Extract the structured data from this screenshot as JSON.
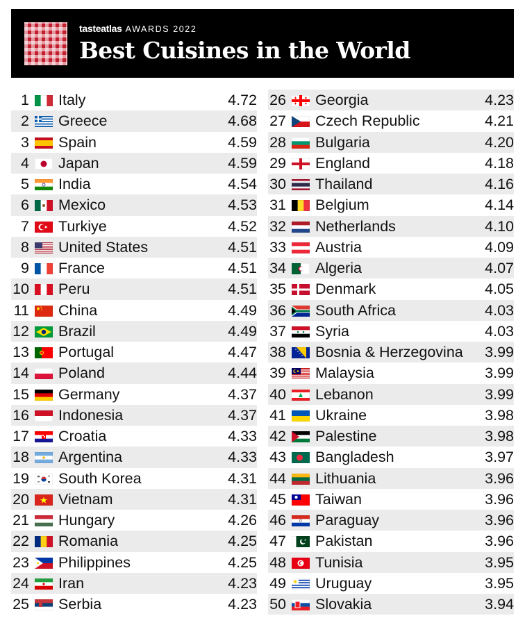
{
  "header": {
    "brand_name": "tasteatlas",
    "brand_suffix": "AWARDS 2022",
    "title": "Best Cuisines in the World",
    "logo": "red-white-checkered-square"
  },
  "colors": {
    "header_bg": "#000000",
    "logo_red": "#c41d2e",
    "row_shade": "#ebebeb",
    "text": "#111111"
  },
  "chart_data": {
    "type": "table",
    "title": "Best Cuisines in the World",
    "columns": [
      "rank",
      "flag",
      "country",
      "rating"
    ],
    "rows": [
      {
        "rank": 1,
        "country": "Italy",
        "score": "4.72",
        "flag": "it"
      },
      {
        "rank": 2,
        "country": "Greece",
        "score": "4.68",
        "flag": "gr"
      },
      {
        "rank": 3,
        "country": "Spain",
        "score": "4.59",
        "flag": "es"
      },
      {
        "rank": 4,
        "country": "Japan",
        "score": "4.59",
        "flag": "jp"
      },
      {
        "rank": 5,
        "country": "India",
        "score": "4.54",
        "flag": "in"
      },
      {
        "rank": 6,
        "country": "Mexico",
        "score": "4.53",
        "flag": "mx"
      },
      {
        "rank": 7,
        "country": "Turkiye",
        "score": "4.52",
        "flag": "tr"
      },
      {
        "rank": 8,
        "country": "United States",
        "score": "4.51",
        "flag": "us"
      },
      {
        "rank": 9,
        "country": "France",
        "score": "4.51",
        "flag": "fr"
      },
      {
        "rank": 10,
        "country": "Peru",
        "score": "4.51",
        "flag": "pe"
      },
      {
        "rank": 11,
        "country": "China",
        "score": "4.49",
        "flag": "cn"
      },
      {
        "rank": 12,
        "country": "Brazil",
        "score": "4.49",
        "flag": "br"
      },
      {
        "rank": 13,
        "country": "Portugal",
        "score": "4.47",
        "flag": "pt"
      },
      {
        "rank": 14,
        "country": "Poland",
        "score": "4.44",
        "flag": "pl"
      },
      {
        "rank": 15,
        "country": "Germany",
        "score": "4.37",
        "flag": "de"
      },
      {
        "rank": 16,
        "country": "Indonesia",
        "score": "4.37",
        "flag": "id"
      },
      {
        "rank": 17,
        "country": "Croatia",
        "score": "4.33",
        "flag": "hr"
      },
      {
        "rank": 18,
        "country": "Argentina",
        "score": "4.33",
        "flag": "ar"
      },
      {
        "rank": 19,
        "country": "South Korea",
        "score": "4.31",
        "flag": "kr"
      },
      {
        "rank": 20,
        "country": "Vietnam",
        "score": "4.31",
        "flag": "vn"
      },
      {
        "rank": 21,
        "country": "Hungary",
        "score": "4.26",
        "flag": "hu"
      },
      {
        "rank": 22,
        "country": "Romania",
        "score": "4.25",
        "flag": "ro"
      },
      {
        "rank": 23,
        "country": "Philippines",
        "score": "4.25",
        "flag": "ph"
      },
      {
        "rank": 24,
        "country": "Iran",
        "score": "4.23",
        "flag": "ir"
      },
      {
        "rank": 25,
        "country": "Serbia",
        "score": "4.23",
        "flag": "rs"
      },
      {
        "rank": 26,
        "country": "Georgia",
        "score": "4.23",
        "flag": "ge"
      },
      {
        "rank": 27,
        "country": "Czech Republic",
        "score": "4.21",
        "flag": "cz"
      },
      {
        "rank": 28,
        "country": "Bulgaria",
        "score": "4.20",
        "flag": "bg"
      },
      {
        "rank": 29,
        "country": "England",
        "score": "4.18",
        "flag": "en"
      },
      {
        "rank": 30,
        "country": "Thailand",
        "score": "4.16",
        "flag": "th"
      },
      {
        "rank": 31,
        "country": "Belgium",
        "score": "4.14",
        "flag": "be"
      },
      {
        "rank": 32,
        "country": "Netherlands",
        "score": "4.10",
        "flag": "nl"
      },
      {
        "rank": 33,
        "country": "Austria",
        "score": "4.09",
        "flag": "at"
      },
      {
        "rank": 34,
        "country": "Algeria",
        "score": "4.07",
        "flag": "dz"
      },
      {
        "rank": 35,
        "country": "Denmark",
        "score": "4.05",
        "flag": "dk"
      },
      {
        "rank": 36,
        "country": "South Africa",
        "score": "4.03",
        "flag": "za"
      },
      {
        "rank": 37,
        "country": "Syria",
        "score": "4.03",
        "flag": "sy"
      },
      {
        "rank": 38,
        "country": "Bosnia & Herzegovina",
        "score": "3.99",
        "flag": "ba"
      },
      {
        "rank": 39,
        "country": "Malaysia",
        "score": "3.99",
        "flag": "my"
      },
      {
        "rank": 40,
        "country": "Lebanon",
        "score": "3.99",
        "flag": "lb"
      },
      {
        "rank": 41,
        "country": "Ukraine",
        "score": "3.98",
        "flag": "ua"
      },
      {
        "rank": 42,
        "country": "Palestine",
        "score": "3.98",
        "flag": "ps"
      },
      {
        "rank": 43,
        "country": "Bangladesh",
        "score": "3.97",
        "flag": "bd"
      },
      {
        "rank": 44,
        "country": "Lithuania",
        "score": "3.96",
        "flag": "lt"
      },
      {
        "rank": 45,
        "country": "Taiwan",
        "score": "3.96",
        "flag": "tw"
      },
      {
        "rank": 46,
        "country": "Paraguay",
        "score": "3.96",
        "flag": "py"
      },
      {
        "rank": 47,
        "country": "Pakistan",
        "score": "3.96",
        "flag": "pk"
      },
      {
        "rank": 48,
        "country": "Tunisia",
        "score": "3.95",
        "flag": "tn"
      },
      {
        "rank": 49,
        "country": "Uruguay",
        "score": "3.95",
        "flag": "uy"
      },
      {
        "rank": 50,
        "country": "Slovakia",
        "score": "3.94",
        "flag": "sk"
      }
    ]
  }
}
